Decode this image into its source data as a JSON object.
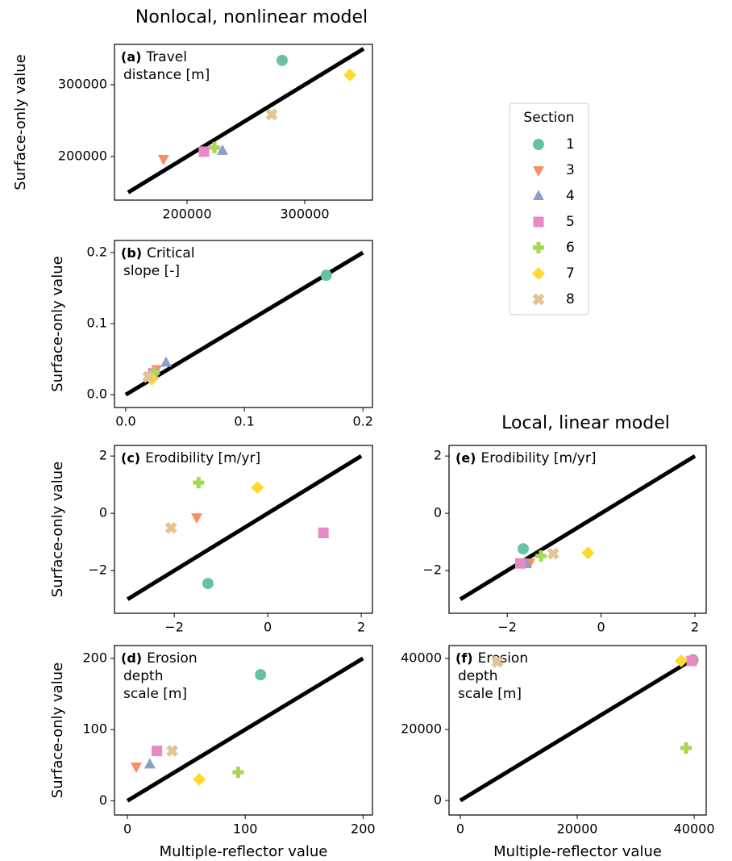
{
  "chart_data": [
    {
      "type": "scatter",
      "title": "Nonlocal, nonlinear model",
      "label": "(a)",
      "annotation": [
        "Travel",
        "distance [m]"
      ],
      "ylabel": "Surface-only value",
      "xlim": [
        138400,
        357500
      ],
      "ylim": [
        139300,
        356000
      ],
      "xticks": [
        200000,
        300000
      ],
      "yticks": [
        200000,
        300000
      ],
      "identity_line": [
        150000,
        350000
      ],
      "legend": {
        "title": "Section",
        "location": "right"
      },
      "series": [
        {
          "name": "1",
          "color": "#66c2a5",
          "marker": "circle",
          "x": [
            280800
          ],
          "values": [
            333700
          ]
        },
        {
          "name": "3",
          "color": "#fc8d62",
          "marker": "triangle-down",
          "x": [
            180100
          ],
          "values": [
            196600
          ]
        },
        {
          "name": "4",
          "color": "#8da0cb",
          "marker": "triangle-up",
          "x": [
            230100
          ],
          "values": [
            207900
          ]
        },
        {
          "name": "5",
          "color": "#e78ac3",
          "marker": "square",
          "x": [
            214400
          ],
          "values": [
            206700
          ]
        },
        {
          "name": "6",
          "color": "#a6d854",
          "marker": "plus",
          "x": [
            223300
          ],
          "values": [
            212400
          ]
        },
        {
          "name": "7",
          "color": "#ffd92f",
          "marker": "diamond",
          "x": [
            338400
          ],
          "values": [
            313500
          ]
        },
        {
          "name": "8",
          "color": "#e5c494",
          "marker": "x",
          "x": [
            271900
          ],
          "values": [
            258400
          ]
        }
      ]
    },
    {
      "type": "scatter",
      "label": "(b)",
      "annotation": [
        "Critical",
        "slope [-]"
      ],
      "ylabel": "Surface-only value",
      "xlim": [
        -0.0095,
        0.208
      ],
      "ylim": [
        -0.018,
        0.217
      ],
      "xticks": [
        {
          "value": 0,
          "label": "0.0"
        },
        0.1,
        0.2
      ],
      "yticks": [
        {
          "value": 0,
          "label": "0.0"
        },
        0.1,
        0.2
      ],
      "identity_line": [
        0,
        0.2
      ],
      "series": [
        {
          "name": "1",
          "color": "#66c2a5",
          "marker": "circle",
          "x": [
            0.169
          ],
          "values": [
            0.168
          ]
        },
        {
          "name": "3",
          "color": "#fc8d62",
          "marker": "triangle-down",
          "x": [
            0.026
          ],
          "values": [
            0.036
          ]
        },
        {
          "name": "4",
          "color": "#8da0cb",
          "marker": "triangle-up",
          "x": [
            0.034
          ],
          "values": [
            0.045
          ]
        },
        {
          "name": "5",
          "color": "#e78ac3",
          "marker": "square",
          "x": [
            0.023
          ],
          "values": [
            0.03
          ]
        },
        {
          "name": "6",
          "color": "#a6d854",
          "marker": "plus",
          "x": [
            0.024
          ],
          "values": [
            0.031
          ]
        },
        {
          "name": "7",
          "color": "#ffd92f",
          "marker": "diamond",
          "x": [
            0.022
          ],
          "values": [
            0.022
          ]
        },
        {
          "name": "8",
          "color": "#e5c494",
          "marker": "x",
          "x": [
            0.019
          ],
          "values": [
            0.025
          ]
        }
      ]
    },
    {
      "type": "scatter",
      "label": "(c)",
      "annotation": [
        "Erodibility [m/yr]"
      ],
      "ylabel": "Surface-only value",
      "xlim": [
        -3.28,
        2.24
      ],
      "ylim": [
        -3.49,
        2.37
      ],
      "xticks": [
        {
          "value": -2,
          "label": "−2"
        },
        0,
        2
      ],
      "yticks": [
        {
          "value": -2,
          "label": "−2"
        },
        0,
        2
      ],
      "identity_line": [
        -3,
        2
      ],
      "series": [
        {
          "name": "1",
          "color": "#66c2a5",
          "marker": "circle",
          "x": [
            -1.28
          ],
          "values": [
            -2.45
          ]
        },
        {
          "name": "3",
          "color": "#fc8d62",
          "marker": "triangle-down",
          "x": [
            -1.52
          ],
          "values": [
            -0.14
          ]
        },
        {
          "name": "4",
          "color": "#8da0cb",
          "marker": "triangle-up",
          "x": [
            1.19
          ],
          "values": [
            -0.73
          ]
        },
        {
          "name": "5",
          "color": "#e78ac3",
          "marker": "square",
          "x": [
            1.19
          ],
          "values": [
            -0.68
          ]
        },
        {
          "name": "6",
          "color": "#a6d854",
          "marker": "plus",
          "x": [
            -1.48
          ],
          "values": [
            1.07
          ]
        },
        {
          "name": "7",
          "color": "#ffd92f",
          "marker": "diamond",
          "x": [
            -0.22
          ],
          "values": [
            0.9
          ]
        },
        {
          "name": "8",
          "color": "#e5c494",
          "marker": "x",
          "x": [
            -2.07
          ],
          "values": [
            -0.51
          ]
        }
      ]
    },
    {
      "type": "scatter",
      "label": "(d)",
      "annotation": [
        "Erosion",
        "depth",
        "scale [m]"
      ],
      "ylabel": "Surface-only value",
      "xlabel": "Multiple-reflector value",
      "xlim": [
        -11,
        208
      ],
      "ylim": [
        -20,
        218
      ],
      "xticks": [
        0,
        100,
        200
      ],
      "yticks": [
        0,
        100,
        200
      ],
      "identity_line": [
        0,
        200
      ],
      "series": [
        {
          "name": "1",
          "color": "#66c2a5",
          "marker": "circle",
          "x": [
            113
          ],
          "values": [
            177
          ]
        },
        {
          "name": "3",
          "color": "#fc8d62",
          "marker": "triangle-down",
          "x": [
            7.5
          ],
          "values": [
            48
          ]
        },
        {
          "name": "4",
          "color": "#8da0cb",
          "marker": "triangle-up",
          "x": [
            19
          ],
          "values": [
            51
          ]
        },
        {
          "name": "5",
          "color": "#e78ac3",
          "marker": "square",
          "x": [
            25
          ],
          "values": [
            70
          ]
        },
        {
          "name": "6",
          "color": "#a6d854",
          "marker": "plus",
          "x": [
            94
          ],
          "values": [
            40
          ]
        },
        {
          "name": "7",
          "color": "#ffd92f",
          "marker": "diamond",
          "x": [
            61
          ],
          "values": [
            30
          ]
        },
        {
          "name": "8",
          "color": "#e5c494",
          "marker": "x",
          "x": [
            38
          ],
          "values": [
            70
          ]
        }
      ]
    },
    {
      "type": "scatter",
      "title": "Local, linear model",
      "label": "(e)",
      "annotation": [
        "Erodibility [m/yr]"
      ],
      "xlim": [
        -3.24,
        2.24
      ],
      "ylim": [
        -3.49,
        2.37
      ],
      "xticks": [
        {
          "value": -2,
          "label": "−2"
        },
        0,
        2
      ],
      "yticks": [
        {
          "value": -2,
          "label": "−2"
        },
        0,
        2
      ],
      "identity_line": [
        -3,
        2
      ],
      "series": [
        {
          "name": "1",
          "color": "#66c2a5",
          "marker": "circle",
          "x": [
            -1.66
          ],
          "values": [
            -1.24
          ]
        },
        {
          "name": "3",
          "color": "#fc8d62",
          "marker": "triangle-down",
          "x": [
            -1.52
          ],
          "values": [
            -1.72
          ]
        },
        {
          "name": "4",
          "color": "#8da0cb",
          "marker": "triangle-up",
          "x": [
            -1.59
          ],
          "values": [
            -1.77
          ]
        },
        {
          "name": "5",
          "color": "#e78ac3",
          "marker": "square",
          "x": [
            -1.72
          ],
          "values": [
            -1.75
          ]
        },
        {
          "name": "6",
          "color": "#a6d854",
          "marker": "plus",
          "x": [
            -1.28
          ],
          "values": [
            -1.49
          ]
        },
        {
          "name": "7",
          "color": "#ffd92f",
          "marker": "diamond",
          "x": [
            -0.28
          ],
          "values": [
            -1.38
          ]
        },
        {
          "name": "8",
          "color": "#e5c494",
          "marker": "x",
          "x": [
            -1.02
          ],
          "values": [
            -1.41
          ]
        }
      ]
    },
    {
      "type": "scatter",
      "label": "(f)",
      "annotation": [
        "Erosion",
        "depth",
        "scale [m]"
      ],
      "xlabel": "Multiple-reflector value",
      "xlim": [
        -1930,
        42060
      ],
      "ylim": [
        -4090,
        43640
      ],
      "xticks": [
        0,
        20000,
        40000
      ],
      "yticks": [
        0,
        20000,
        40000
      ],
      "identity_line": [
        0,
        40000
      ],
      "series": [
        {
          "name": "1",
          "color": "#66c2a5",
          "marker": "circle",
          "x": [
            39800
          ],
          "values": [
            39600
          ]
        },
        {
          "name": "3",
          "color": "#fc8d62",
          "marker": "triangle-down",
          "x": [
            39500
          ],
          "values": [
            39500
          ]
        },
        {
          "name": "4",
          "color": "#8da0cb",
          "marker": "triangle-up",
          "x": [
            39700
          ],
          "values": [
            39600
          ]
        },
        {
          "name": "5",
          "color": "#e78ac3",
          "marker": "square",
          "x": [
            39580
          ],
          "values": [
            39320
          ]
        },
        {
          "name": "6",
          "color": "#a6d854",
          "marker": "plus",
          "x": [
            38610
          ],
          "values": [
            14770
          ]
        },
        {
          "name": "7",
          "color": "#ffd92f",
          "marker": "diamond",
          "x": [
            37780
          ],
          "values": [
            39320
          ]
        },
        {
          "name": "8",
          "color": "#e5c494",
          "marker": "x",
          "x": [
            6340
          ],
          "values": [
            39090
          ]
        }
      ]
    }
  ]
}
